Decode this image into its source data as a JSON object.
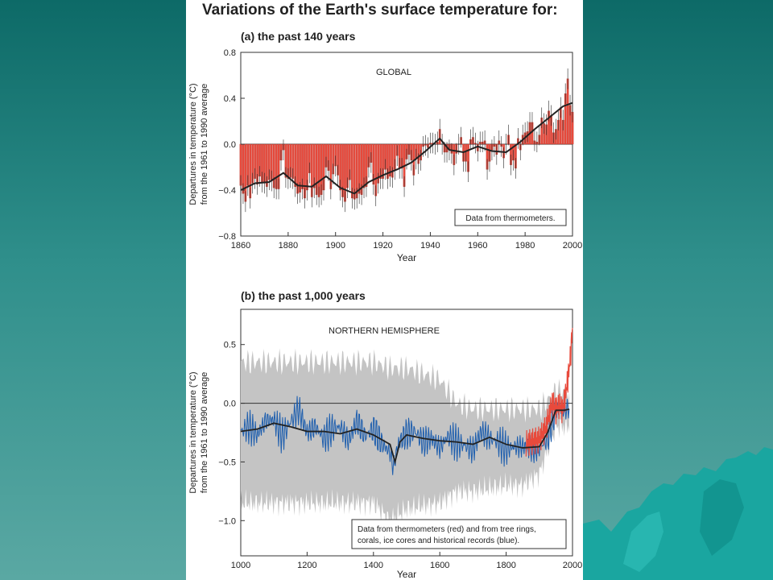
{
  "page": {
    "title": "Variations of the Earth's surface temperature for:",
    "colors": {
      "bar_red": "#e84a3c",
      "error_bar": "#2a2a2a",
      "proxy_blue": "#1f5fae",
      "uncertainty_grey": "#c4c4c4",
      "smooth_line": "#222222"
    }
  },
  "chart_data": [
    {
      "id": "a",
      "type": "bar",
      "panel_label": "(a) the past 140 years",
      "inner_label": "GLOBAL",
      "note": "Data from thermometers.",
      "xlabel": "Year",
      "ylabel_line1": "Departures in temperature (°C)",
      "ylabel_line2": "from the 1961 to 1990 average",
      "xlim": [
        1860,
        2000
      ],
      "ylim": [
        -0.8,
        0.8
      ],
      "x_ticks": [
        "1860",
        "1880",
        "1900",
        "1920",
        "1940",
        "1960",
        "1980",
        "2000"
      ],
      "y_ticks": [
        "0.8",
        "0.4",
        "0.0",
        "−0.4",
        "−0.8"
      ],
      "years": [
        1860,
        1861,
        1862,
        1863,
        1864,
        1865,
        1866,
        1867,
        1868,
        1869,
        1870,
        1871,
        1872,
        1873,
        1874,
        1875,
        1876,
        1877,
        1878,
        1879,
        1880,
        1881,
        1882,
        1883,
        1884,
        1885,
        1886,
        1887,
        1888,
        1889,
        1890,
        1891,
        1892,
        1893,
        1894,
        1895,
        1896,
        1897,
        1898,
        1899,
        1900,
        1901,
        1902,
        1903,
        1904,
        1905,
        1906,
        1907,
        1908,
        1909,
        1910,
        1911,
        1912,
        1913,
        1914,
        1915,
        1916,
        1917,
        1918,
        1919,
        1920,
        1921,
        1922,
        1923,
        1924,
        1925,
        1926,
        1927,
        1928,
        1929,
        1930,
        1931,
        1932,
        1933,
        1934,
        1935,
        1936,
        1937,
        1938,
        1939,
        1940,
        1941,
        1942,
        1943,
        1944,
        1945,
        1946,
        1947,
        1948,
        1949,
        1950,
        1951,
        1952,
        1953,
        1954,
        1955,
        1956,
        1957,
        1958,
        1959,
        1960,
        1961,
        1962,
        1963,
        1964,
        1965,
        1966,
        1967,
        1968,
        1969,
        1970,
        1971,
        1972,
        1973,
        1974,
        1975,
        1976,
        1977,
        1978,
        1979,
        1980,
        1981,
        1982,
        1983,
        1984,
        1985,
        1986,
        1987,
        1988,
        1989,
        1990,
        1991,
        1992,
        1993,
        1994,
        1995,
        1996,
        1997,
        1998,
        1999,
        2000
      ],
      "values": [
        -0.36,
        -0.43,
        -0.5,
        -0.36,
        -0.47,
        -0.34,
        -0.3,
        -0.35,
        -0.28,
        -0.33,
        -0.34,
        -0.37,
        -0.31,
        -0.32,
        -0.38,
        -0.39,
        -0.39,
        -0.14,
        -0.05,
        -0.29,
        -0.3,
        -0.29,
        -0.3,
        -0.37,
        -0.43,
        -0.42,
        -0.39,
        -0.47,
        -0.4,
        -0.25,
        -0.46,
        -0.38,
        -0.44,
        -0.46,
        -0.44,
        -0.4,
        -0.2,
        -0.23,
        -0.39,
        -0.26,
        -0.19,
        -0.27,
        -0.4,
        -0.46,
        -0.5,
        -0.38,
        -0.31,
        -0.47,
        -0.48,
        -0.47,
        -0.43,
        -0.44,
        -0.38,
        -0.37,
        -0.2,
        -0.16,
        -0.35,
        -0.45,
        -0.34,
        -0.3,
        -0.3,
        -0.22,
        -0.3,
        -0.28,
        -0.29,
        -0.22,
        -0.1,
        -0.21,
        -0.21,
        -0.37,
        -0.13,
        -0.09,
        -0.14,
        -0.27,
        -0.13,
        -0.17,
        -0.14,
        -0.02,
        -0.01,
        -0.03,
        0.01,
        0.01,
        0.0,
        0.02,
        0.13,
        0.0,
        -0.07,
        -0.07,
        -0.05,
        -0.08,
        -0.18,
        -0.08,
        0.0,
        0.06,
        -0.15,
        -0.15,
        -0.24,
        0.04,
        0.06,
        0.01,
        -0.06,
        0.02,
        0.02,
        0.03,
        -0.22,
        -0.15,
        -0.05,
        -0.02,
        -0.09,
        0.03,
        -0.02,
        -0.12,
        0.0,
        0.08,
        -0.18,
        -0.14,
        -0.21,
        0.05,
        -0.05,
        0.08,
        0.1,
        0.11,
        0.19,
        0.19,
        0.03,
        0.02,
        0.08,
        0.23,
        0.18,
        0.17,
        0.29,
        0.25,
        0.1,
        0.13,
        0.21,
        0.32,
        0.21,
        0.44,
        0.57,
        0.34,
        0.28
      ],
      "smoothed_points": [
        [
          1860,
          -0.4
        ],
        [
          1866,
          -0.34
        ],
        [
          1872,
          -0.33
        ],
        [
          1878,
          -0.25
        ],
        [
          1884,
          -0.36
        ],
        [
          1890,
          -0.37
        ],
        [
          1896,
          -0.28
        ],
        [
          1902,
          -0.38
        ],
        [
          1908,
          -0.43
        ],
        [
          1914,
          -0.33
        ],
        [
          1920,
          -0.27
        ],
        [
          1926,
          -0.22
        ],
        [
          1932,
          -0.16
        ],
        [
          1938,
          -0.06
        ],
        [
          1944,
          0.05
        ],
        [
          1948,
          -0.05
        ],
        [
          1954,
          -0.07
        ],
        [
          1960,
          -0.02
        ],
        [
          1966,
          -0.06
        ],
        [
          1972,
          -0.07
        ],
        [
          1978,
          0.02
        ],
        [
          1984,
          0.13
        ],
        [
          1990,
          0.23
        ],
        [
          1996,
          0.33
        ],
        [
          2000,
          0.36
        ]
      ]
    },
    {
      "id": "b",
      "type": "line",
      "panel_label": "(b) the past 1,000 years",
      "inner_label": "NORTHERN HEMISPHERE",
      "note_line1": "Data from thermometers (red) and from tree rings,",
      "note_line2": "corals, ice cores and historical records (blue).",
      "xlabel": "Year",
      "ylabel_line1": "Departures in temperature (°C)",
      "ylabel_line2": "from the 1961 to 1990 average",
      "xlim": [
        1000,
        2000
      ],
      "ylim": [
        -1.3,
        0.8
      ],
      "x_ticks": [
        "1000",
        "1200",
        "1400",
        "1600",
        "1800",
        "2000"
      ],
      "y_ticks": [
        "0.5",
        "0.0",
        "−0.5",
        "−1.0"
      ],
      "series": [
        {
          "points": [
            [
              1000,
              -0.24
            ],
            [
              1025,
              -0.2
            ],
            [
              1050,
              -0.27
            ],
            [
              1075,
              -0.15
            ],
            [
              1100,
              -0.14
            ],
            [
              1125,
              -0.28
            ],
            [
              1150,
              -0.16
            ],
            [
              1175,
              -0.05
            ],
            [
              1200,
              -0.25
            ],
            [
              1225,
              -0.2
            ],
            [
              1250,
              -0.3
            ],
            [
              1275,
              -0.22
            ],
            [
              1300,
              -0.2
            ],
            [
              1325,
              -0.32
            ],
            [
              1350,
              -0.15
            ],
            [
              1375,
              -0.28
            ],
            [
              1400,
              -0.22
            ],
            [
              1425,
              -0.34
            ],
            [
              1450,
              -0.42
            ],
            [
              1460,
              -0.55
            ],
            [
              1475,
              -0.34
            ],
            [
              1500,
              -0.26
            ],
            [
              1525,
              -0.24
            ],
            [
              1550,
              -0.33
            ],
            [
              1575,
              -0.3
            ],
            [
              1600,
              -0.38
            ],
            [
              1625,
              -0.28
            ],
            [
              1650,
              -0.34
            ],
            [
              1675,
              -0.36
            ],
            [
              1700,
              -0.4
            ],
            [
              1725,
              -0.24
            ],
            [
              1750,
              -0.3
            ],
            [
              1775,
              -0.33
            ],
            [
              1800,
              -0.39
            ],
            [
              1825,
              -0.37
            ],
            [
              1850,
              -0.37
            ],
            [
              1875,
              -0.38
            ],
            [
              1900,
              -0.38
            ],
            [
              1925,
              -0.3
            ],
            [
              1950,
              -0.05
            ],
            [
              1975,
              -0.05
            ],
            [
              1990,
              -0.05
            ]
          ]
        },
        {
          "points": [
            [
              1860,
              -0.34
            ],
            [
              1880,
              -0.32
            ],
            [
              1900,
              -0.3
            ],
            [
              1920,
              -0.2
            ],
            [
              1940,
              0.02
            ],
            [
              1950,
              -0.05
            ],
            [
              1960,
              0.0
            ],
            [
              1970,
              -0.05
            ],
            [
              1980,
              0.1
            ],
            [
              1990,
              0.3
            ],
            [
              1995,
              0.45
            ],
            [
              2000,
              0.65
            ]
          ]
        }
      ],
      "uncertainty_band": {
        "points": [
          [
            1000,
            0.35,
            -0.85
          ],
          [
            1100,
            0.35,
            -0.85
          ],
          [
            1200,
            0.35,
            -0.85
          ],
          [
            1300,
            0.35,
            -0.85
          ],
          [
            1400,
            0.35,
            -0.85
          ],
          [
            1450,
            0.3,
            -1.0
          ],
          [
            1500,
            0.3,
            -0.9
          ],
          [
            1600,
            0.2,
            -0.85
          ],
          [
            1650,
            0.0,
            -0.75
          ],
          [
            1700,
            -0.05,
            -0.75
          ],
          [
            1800,
            -0.05,
            -0.7
          ],
          [
            1850,
            -0.05,
            -0.7
          ],
          [
            1900,
            -0.05,
            -0.6
          ],
          [
            1950,
            0.1,
            -0.2
          ],
          [
            1990,
            0.1,
            -0.2
          ]
        ]
      },
      "smoothed_points": [
        [
          1000,
          -0.24
        ],
        [
          1050,
          -0.22
        ],
        [
          1100,
          -0.17
        ],
        [
          1150,
          -0.2
        ],
        [
          1200,
          -0.24
        ],
        [
          1250,
          -0.24
        ],
        [
          1300,
          -0.26
        ],
        [
          1350,
          -0.22
        ],
        [
          1400,
          -0.27
        ],
        [
          1450,
          -0.35
        ],
        [
          1465,
          -0.5
        ],
        [
          1480,
          -0.33
        ],
        [
          1500,
          -0.27
        ],
        [
          1550,
          -0.3
        ],
        [
          1600,
          -0.32
        ],
        [
          1650,
          -0.33
        ],
        [
          1700,
          -0.35
        ],
        [
          1750,
          -0.29
        ],
        [
          1800,
          -0.35
        ],
        [
          1850,
          -0.38
        ],
        [
          1900,
          -0.37
        ],
        [
          1925,
          -0.25
        ],
        [
          1950,
          -0.06
        ],
        [
          1975,
          -0.06
        ],
        [
          1990,
          -0.05
        ]
      ]
    }
  ]
}
